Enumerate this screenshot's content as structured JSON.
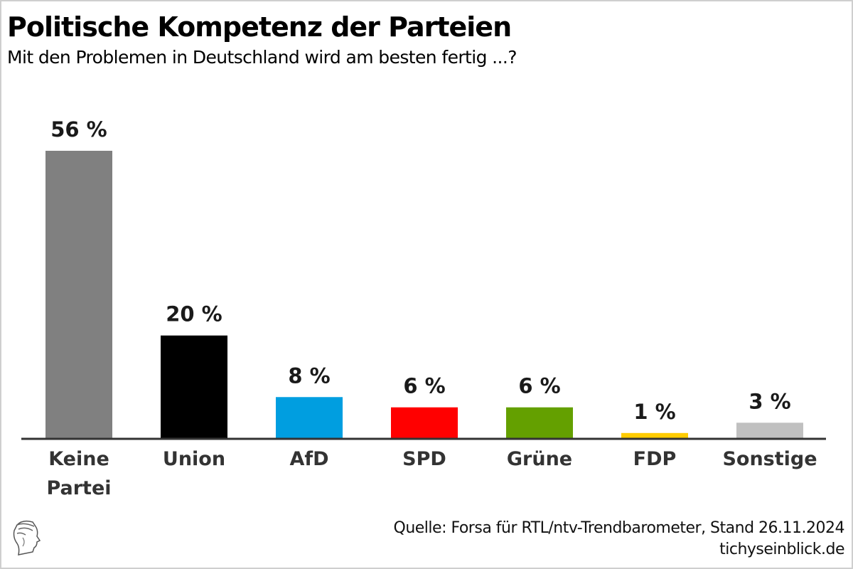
{
  "chart_data": {
    "type": "bar",
    "title": "Politische Kompetenz der Parteien",
    "subtitle": "Mit den Problemen in Deutschland wird am besten fertig ...?",
    "xlabel": "",
    "ylabel": "",
    "ylim": [
      0,
      56
    ],
    "grid": false,
    "categories": [
      [
        "Keine",
        "Partei"
      ],
      [
        "Union"
      ],
      [
        "AfD"
      ],
      [
        "SPD"
      ],
      [
        "Grüne"
      ],
      [
        "FDP"
      ],
      [
        "Sonstige"
      ]
    ],
    "values": [
      56,
      20,
      8,
      6,
      6,
      1,
      3
    ],
    "value_labels": [
      "56 %",
      "20 %",
      "8 %",
      "6 %",
      "6 %",
      "1 %",
      "3 %"
    ],
    "colors": [
      "#808080",
      "#000000",
      "#009ee0",
      "#ff0000",
      "#64a000",
      "#ffcc00",
      "#c0c0c0"
    ]
  },
  "footer": {
    "source": "Quelle: Forsa für RTL/ntv-Trendbarometer, Stand 26.11.2024",
    "site": "tichyseinblick.de",
    "logo_icon": "hermes-head-logo-icon"
  }
}
